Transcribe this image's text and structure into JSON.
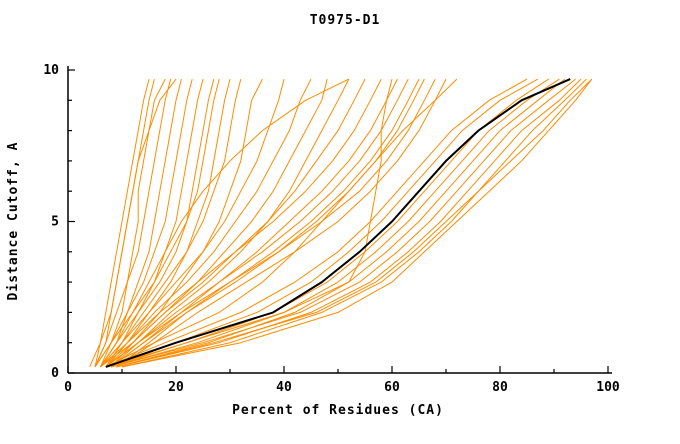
{
  "window": {
    "title": "T0975-D1 GDT plot"
  },
  "chart_data": {
    "type": "line",
    "title": "T0975-D1",
    "xlabel": "Percent of Residues (CA)",
    "ylabel": "Distance Cutoff, A",
    "xlim": [
      0,
      100
    ],
    "ylim": [
      0,
      10
    ],
    "x_major_ticks": [
      0,
      20,
      40,
      60,
      80,
      100
    ],
    "x_minor_step": 10,
    "y_major_ticks": [
      0,
      5,
      10
    ],
    "y_minor_step": 1,
    "grid": "off",
    "legend": "none",
    "colors": {
      "model": "#ff8c00",
      "highlight": "#000000",
      "axis": "#000000",
      "background": "#ffffff"
    },
    "y_grid": [
      0.2,
      1,
      2,
      3,
      4,
      5,
      6,
      7,
      8,
      9,
      9.7
    ],
    "orange_series": [
      [
        5,
        6,
        7,
        8,
        9,
        10,
        11,
        12,
        13,
        14,
        15
      ],
      [
        5,
        7,
        8,
        9,
        10,
        11,
        12,
        13,
        14,
        15,
        16
      ],
      [
        6,
        8,
        10,
        11,
        12,
        13,
        13,
        14,
        15,
        16,
        18
      ],
      [
        5,
        7,
        9,
        11,
        13,
        14,
        15,
        16,
        17,
        18,
        19
      ],
      [
        6,
        9,
        11,
        13,
        15,
        16,
        17,
        18,
        19,
        20,
        21
      ],
      [
        5,
        8,
        11,
        14,
        16,
        18,
        19,
        20,
        21,
        22,
        23
      ],
      [
        7,
        10,
        13,
        16,
        18,
        20,
        21,
        22,
        23,
        24,
        25
      ],
      [
        6,
        9,
        13,
        17,
        20,
        22,
        23,
        24,
        25,
        26,
        27
      ],
      [
        5,
        8,
        12,
        16,
        19,
        22,
        24,
        25,
        26,
        27,
        28
      ],
      [
        7,
        11,
        15,
        19,
        22,
        24,
        26,
        27,
        28,
        29,
        30
      ],
      [
        6,
        10,
        14,
        18,
        22,
        25,
        27,
        29,
        30,
        31,
        32
      ],
      [
        8,
        12,
        17,
        21,
        25,
        28,
        30,
        32,
        33,
        34,
        36
      ],
      [
        4,
        6,
        8,
        9,
        10,
        11,
        12,
        13,
        15,
        17,
        20
      ],
      [
        6,
        10,
        15,
        20,
        25,
        29,
        32,
        35,
        37,
        39,
        40
      ],
      [
        7,
        11,
        16,
        22,
        27,
        31,
        35,
        38,
        41,
        43,
        45
      ],
      [
        6,
        12,
        18,
        24,
        29,
        34,
        38,
        41,
        44,
        47,
        48
      ],
      [
        8,
        13,
        19,
        26,
        32,
        37,
        41,
        44,
        47,
        50,
        52
      ],
      [
        7,
        12,
        18,
        25,
        31,
        37,
        42,
        46,
        50,
        53,
        55
      ],
      [
        6,
        11,
        17,
        24,
        31,
        38,
        44,
        49,
        53,
        56,
        58
      ],
      [
        8,
        14,
        21,
        28,
        35,
        41,
        47,
        52,
        56,
        59,
        61
      ],
      [
        7,
        13,
        20,
        28,
        36,
        43,
        49,
        54,
        58,
        61,
        63
      ],
      [
        9,
        15,
        22,
        30,
        38,
        45,
        51,
        56,
        60,
        63,
        65
      ],
      [
        8,
        14,
        22,
        31,
        39,
        46,
        52,
        57,
        61,
        64,
        66
      ],
      [
        7,
        13,
        21,
        30,
        39,
        47,
        54,
        59,
        63,
        66,
        68
      ],
      [
        9,
        16,
        24,
        33,
        42,
        50,
        56,
        61,
        65,
        68,
        70
      ],
      [
        8,
        22,
        40,
        52,
        55,
        56,
        57,
        58,
        58,
        59,
        60
      ],
      [
        7,
        16,
        28,
        36,
        42,
        47,
        52,
        57,
        62,
        68,
        72
      ],
      [
        7,
        18,
        32,
        42,
        50,
        56,
        61,
        66,
        71,
        78,
        85
      ],
      [
        8,
        20,
        35,
        45,
        52,
        58,
        63,
        68,
        73,
        80,
        87
      ],
      [
        7,
        22,
        38,
        48,
        55,
        61,
        66,
        71,
        76,
        83,
        89
      ],
      [
        8,
        24,
        40,
        50,
        57,
        63,
        68,
        73,
        78,
        85,
        91
      ],
      [
        9,
        26,
        42,
        52,
        59,
        65,
        70,
        75,
        80,
        87,
        92
      ],
      [
        8,
        25,
        43,
        54,
        61,
        67,
        72,
        77,
        82,
        89,
        94
      ],
      [
        9,
        28,
        45,
        56,
        63,
        69,
        74,
        79,
        84,
        91,
        95
      ],
      [
        10,
        30,
        47,
        58,
        65,
        71,
        76,
        81,
        86,
        92,
        96
      ],
      [
        9,
        27,
        46,
        57,
        64,
        70,
        76,
        82,
        88,
        93,
        97
      ],
      [
        10,
        32,
        50,
        60,
        66,
        72,
        78,
        84,
        89,
        94,
        97
      ],
      [
        6,
        9,
        12,
        15,
        18,
        21,
        25,
        30,
        36,
        44,
        52
      ]
    ],
    "black_series": [
      7,
      20,
      38,
      47,
      54,
      60,
      65,
      70,
      76,
      84,
      93
    ]
  }
}
